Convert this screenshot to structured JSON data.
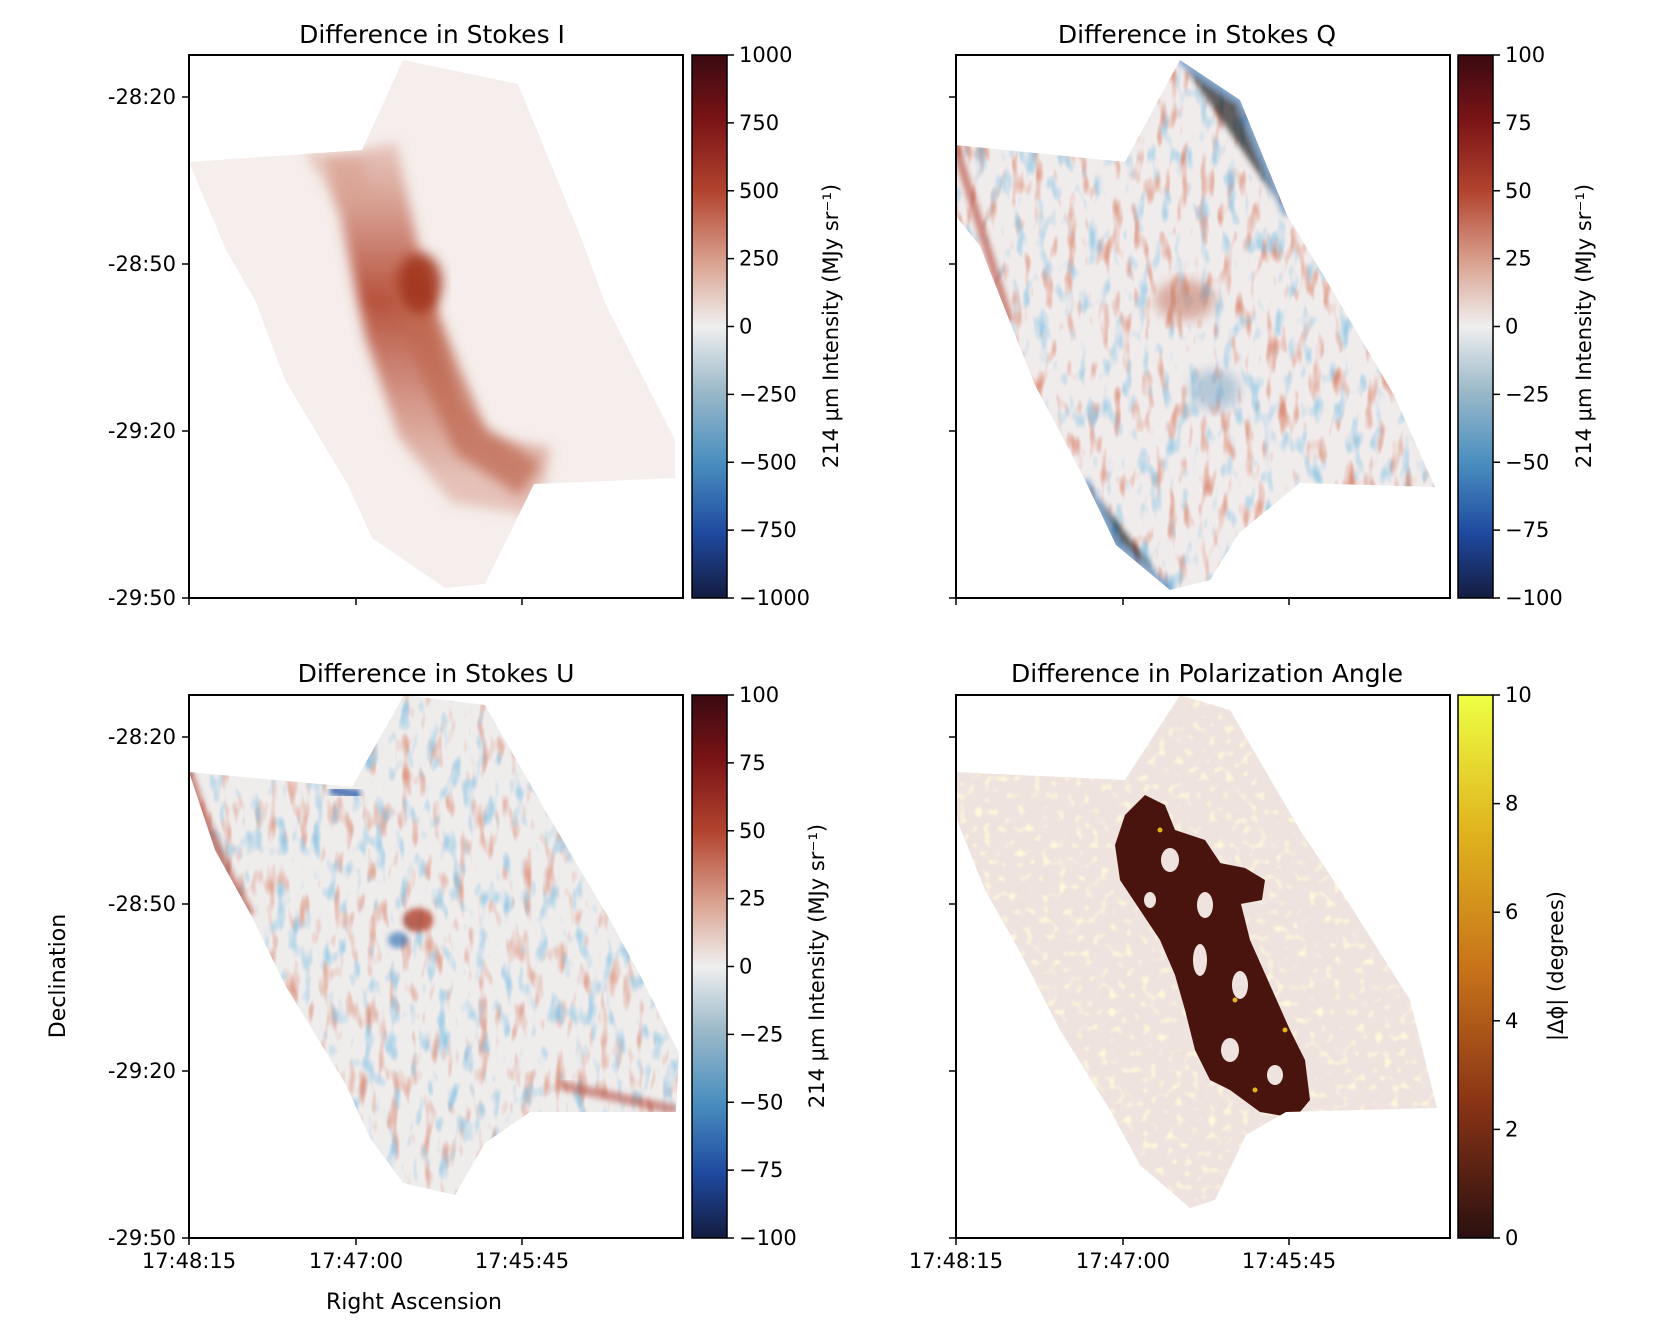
{
  "figure": {
    "ylabel": "Declination",
    "xlabel": "Right Ascension",
    "dec_ticks": [
      "-28:20",
      "-28:50",
      "-29:20",
      "-29:50"
    ],
    "ra_ticks": [
      "17:48:15",
      "17:47:00",
      "17:45:45"
    ]
  },
  "chart_data": [
    {
      "type": "heatmap",
      "title": "Difference in Stokes I",
      "xlabel": "Right Ascension",
      "ylabel": "Declination",
      "colormap": "diverging blue-white-red",
      "colorbar": {
        "label": "214 μm Intensity (MJy sr⁻¹)",
        "range": [
          -1000,
          1000
        ],
        "ticks": [
          "1000",
          "750",
          "500",
          "250",
          "0",
          "−250",
          "−500",
          "−750",
          "−1000"
        ]
      }
    },
    {
      "type": "heatmap",
      "title": "Difference in Stokes Q",
      "xlabel": "Right Ascension",
      "ylabel": "Declination",
      "colormap": "diverging blue-white-red",
      "colorbar": {
        "label": "214 μm Intensity (MJy sr⁻¹)",
        "range": [
          -100,
          100
        ],
        "ticks": [
          "100",
          "75",
          "50",
          "25",
          "0",
          "−25",
          "−50",
          "−75",
          "−100"
        ]
      }
    },
    {
      "type": "heatmap",
      "title": "Difference in Stokes U",
      "xlabel": "Right Ascension",
      "ylabel": "Declination",
      "colormap": "diverging blue-white-red",
      "colorbar": {
        "label": "214 μm Intensity (MJy sr⁻¹)",
        "range": [
          -100,
          100
        ],
        "ticks": [
          "100",
          "75",
          "50",
          "25",
          "0",
          "−25",
          "−50",
          "−75",
          "−100"
        ]
      }
    },
    {
      "type": "heatmap",
      "title": "Difference in Polarization Angle",
      "xlabel": "Right Ascension",
      "ylabel": "Declination",
      "colormap": "afmhot (dark red to yellow)",
      "colorbar": {
        "label": "|Δϕ| (degrees)",
        "range": [
          0,
          10
        ],
        "ticks": [
          "10",
          "8",
          "6",
          "4",
          "2",
          "0"
        ]
      }
    }
  ]
}
